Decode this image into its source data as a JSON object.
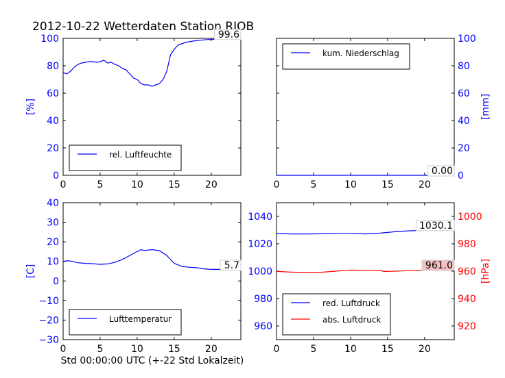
{
  "title": "2012-10-22 Wetterdaten Station RJOB",
  "xlabel": "Std 00:00:00 UTC (+-22 Std Lokalzeit)",
  "colors": {
    "blue": "#0000ff",
    "red": "#ff0000",
    "black": "#000000"
  },
  "chart_data": [
    {
      "id": "humidity",
      "type": "line",
      "ylabel": "[%]",
      "legend": [
        "rel. Luftfeuchte"
      ],
      "legend_loc": "lower-left",
      "xlim": [
        0,
        24
      ],
      "ylim": [
        0,
        100
      ],
      "xticks": [
        "0",
        "5",
        "10",
        "15",
        "20"
      ],
      "yticks": [
        "0",
        "20",
        "40",
        "60",
        "80",
        "100"
      ],
      "last_value_label": "99.6",
      "series": [
        {
          "name": "rel. Luftfeuchte",
          "color": "#0000ff",
          "x": [
            0,
            0.5,
            1,
            1.5,
            2,
            2.5,
            3,
            3.5,
            4,
            4.5,
            5,
            5.5,
            6,
            6.5,
            7,
            7.5,
            8,
            8.5,
            9,
            9.5,
            10,
            10.5,
            11,
            11.5,
            12,
            12.5,
            13,
            13.5,
            14,
            14.5,
            15,
            15.5,
            16,
            16.5,
            17,
            17.5,
            18,
            18.5,
            19,
            19.5,
            20,
            20.5,
            21,
            21.5,
            22,
            22.5,
            23,
            23.5,
            24
          ],
          "y": [
            75,
            74,
            76,
            79,
            81,
            82,
            82.5,
            83,
            83,
            82.5,
            83,
            84,
            82,
            82.5,
            81,
            80,
            78,
            77,
            74,
            71,
            70,
            67,
            66,
            66,
            65,
            66,
            67,
            70,
            76,
            88,
            92,
            95,
            96,
            97,
            97.5,
            98,
            98.3,
            98.6,
            98.9,
            99.1,
            99.2,
            99.3,
            99.4,
            99.5,
            99.5,
            99.6,
            99.6,
            99.6,
            99.6
          ]
        }
      ]
    },
    {
      "id": "precipitation",
      "type": "line",
      "ylabel": "[mm]",
      "legend": [
        "kum. Niederschlag"
      ],
      "legend_loc": "upper-left",
      "xlim": [
        0,
        24
      ],
      "ylim": [
        0,
        100
      ],
      "xticks": [
        "0",
        "5",
        "10",
        "15",
        "20"
      ],
      "yticks": [
        "0",
        "20",
        "40",
        "60",
        "80",
        "100"
      ],
      "last_value_label": "0.00",
      "series": [
        {
          "name": "kum. Niederschlag",
          "color": "#0000ff",
          "x": [
            0,
            24
          ],
          "y": [
            0,
            0
          ]
        }
      ]
    },
    {
      "id": "temperature",
      "type": "line",
      "ylabel": "[C]",
      "legend": [
        "Lufttemperatur"
      ],
      "legend_loc": "lower-left",
      "xlim": [
        0,
        24
      ],
      "ylim": [
        -30,
        40
      ],
      "xticks": [
        "0",
        "5",
        "10",
        "15",
        "20"
      ],
      "yticks": [
        "−30",
        "−20",
        "−10",
        "0",
        "10",
        "20",
        "30",
        "40"
      ],
      "last_value_label": "5.7",
      "series": [
        {
          "name": "Lufttemperatur",
          "color": "#0000ff",
          "x": [
            0,
            0.5,
            1,
            2,
            3,
            4,
            5,
            6,
            7,
            8,
            9,
            10,
            10.5,
            11,
            12,
            13,
            14,
            14.5,
            15,
            16,
            17,
            18,
            19,
            20,
            21,
            22,
            23,
            24
          ],
          "y": [
            10,
            10.3,
            10.2,
            9.3,
            9,
            8.8,
            8.5,
            8.7,
            9.5,
            11,
            13,
            15,
            16,
            15.6,
            16,
            15.5,
            13,
            11,
            9,
            7.5,
            7,
            6.8,
            6.2,
            5.9,
            5.9,
            5.8,
            5.7,
            5.7
          ]
        }
      ]
    },
    {
      "id": "pressure",
      "type": "line",
      "ylabel": "[hPa]",
      "legend": [
        "red. Luftdruck",
        "abs. Luftdruck"
      ],
      "legend_loc": "lower-left",
      "xlim": [
        0,
        24
      ],
      "ylim_left": [
        950,
        1050
      ],
      "ylim_right": [
        910,
        1010
      ],
      "xticks": [
        "0",
        "5",
        "10",
        "15",
        "20"
      ],
      "yticks_left": [
        "960",
        "980",
        "1000",
        "1020",
        "1040"
      ],
      "yticks_right": [
        "920",
        "940",
        "960",
        "980",
        "1000"
      ],
      "last_value_labels": [
        "1030.1",
        "961.0"
      ],
      "series": [
        {
          "name": "red. Luftdruck",
          "color": "#0000ff",
          "axis": "left",
          "x": [
            0,
            2,
            4,
            6,
            8,
            10,
            12,
            14,
            16,
            18,
            20,
            22,
            24
          ],
          "y": [
            1027.5,
            1027.2,
            1027.2,
            1027.3,
            1027.6,
            1027.6,
            1027.2,
            1027.8,
            1028.8,
            1029.5,
            1029.8,
            1030,
            1030.1
          ]
        },
        {
          "name": "abs. Luftdruck",
          "color": "#ff0000",
          "axis": "right",
          "x": [
            0,
            2,
            4,
            6,
            8,
            10,
            11,
            12,
            14,
            14.5,
            16,
            18,
            20,
            22,
            24
          ],
          "y": [
            959.8,
            959.3,
            959,
            959.2,
            960,
            960.8,
            960.7,
            960.6,
            960.5,
            959.8,
            960,
            960.4,
            960.8,
            961,
            961
          ]
        }
      ]
    }
  ]
}
